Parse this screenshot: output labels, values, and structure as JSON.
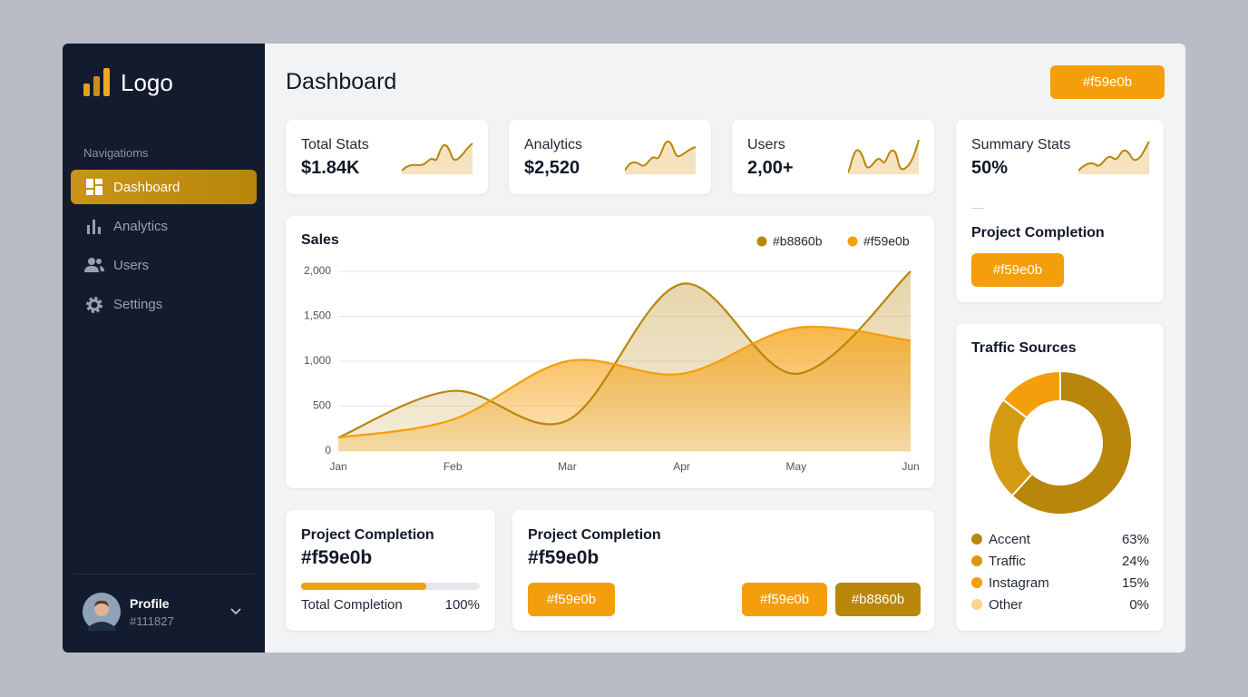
{
  "sidebar": {
    "logo": "Logo",
    "section": "Navigatioms",
    "nav": [
      "Dashboard",
      "Analytics",
      "Users",
      "Settings"
    ],
    "profile": {
      "name": "Profile",
      "sub": "#111827"
    }
  },
  "header": {
    "title": "Dashboard",
    "button": "#f59e0b"
  },
  "stats": [
    {
      "label": "Total Stats",
      "value": "$1.84K"
    },
    {
      "label": "Analytics",
      "value": "$2,520"
    },
    {
      "label": "Users",
      "value": "2,00+"
    },
    {
      "label": "Summary Stats",
      "value": "50%"
    }
  ],
  "summary": {
    "title": "Project Completion",
    "button": "#f59e0b"
  },
  "project_1": {
    "title": "Project Completion",
    "value": "#f59e0b",
    "progress_label": "Total Completion",
    "progress_value": "100%"
  },
  "project_2": {
    "title": "Project Completion",
    "value": "#f59e0b",
    "buttons": [
      "#f59e0b",
      "#f59e0b",
      "#b8860b"
    ]
  },
  "chart_data": [
    {
      "type": "area",
      "title": "Sales",
      "categories": [
        "Jan",
        "Feb",
        "Mar",
        "Apr",
        "May",
        "Jun"
      ],
      "series": [
        {
          "name": "#b8860b",
          "color": "#b8860b",
          "values": [
            150,
            670,
            340,
            1860,
            860,
            2000
          ]
        },
        {
          "name": "#f59e0b",
          "color": "#f59e0b",
          "values": [
            150,
            350,
            1000,
            860,
            1370,
            1230
          ]
        }
      ],
      "ylim": [
        0,
        2000
      ],
      "yticks": [
        0,
        500,
        {
          "value": 1000,
          "label": "1,000"
        },
        {
          "value": 1500,
          "label": "1,500"
        },
        {
          "value": 2000,
          "label": "2,000"
        }
      ],
      "grid": true,
      "legend": "top-right"
    },
    {
      "type": "pie",
      "title": "Traffic Sources",
      "categories": [
        "Accent",
        "Traffic",
        "Instagram",
        "Other"
      ],
      "values": [
        63,
        24,
        15,
        0
      ],
      "value_labels": [
        "63%",
        "24%",
        "15%",
        "0%"
      ],
      "colors": [
        "#b8860b",
        "#d49a12",
        "#f59e0b",
        "#fcd38a"
      ]
    }
  ]
}
